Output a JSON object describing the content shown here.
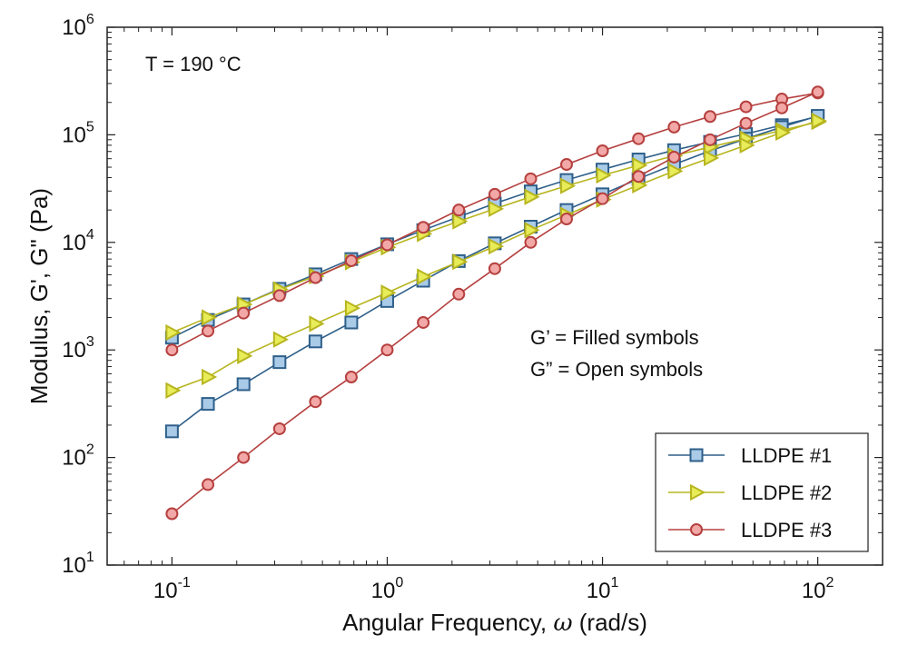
{
  "chart_data": {
    "type": "line",
    "xscale": "log",
    "yscale": "log",
    "xlim": [
      0.05,
      200
    ],
    "ylim": [
      10,
      1000000
    ],
    "xlabel_prefix": "Angular Frequency, ",
    "xlabel_symbol": "ω",
    "xlabel_suffix": " (rad/s)",
    "ylabel": "Modulus, G', G\" (Pa)",
    "x_ticks": [
      {
        "value": 0.1,
        "base": "10",
        "exp": "-1"
      },
      {
        "value": 1,
        "base": "10",
        "exp": "0"
      },
      {
        "value": 10,
        "base": "10",
        "exp": "1"
      },
      {
        "value": 100,
        "base": "10",
        "exp": "2"
      }
    ],
    "y_ticks": [
      {
        "value": 10,
        "base": "10",
        "exp": "1"
      },
      {
        "value": 100,
        "base": "10",
        "exp": "2"
      },
      {
        "value": 1000,
        "base": "10",
        "exp": "3"
      },
      {
        "value": 10000,
        "base": "10",
        "exp": "4"
      },
      {
        "value": 100000,
        "base": "10",
        "exp": "5"
      },
      {
        "value": 1000000,
        "base": "10",
        "exp": "6"
      }
    ],
    "annotations": {
      "temperature": "T = 190 °C",
      "filled_note": "G’ = Filled symbols",
      "open_note": "G” = Open symbols"
    },
    "legend_position": "bottom-right",
    "x": [
      0.1,
      0.147,
      0.215,
      0.316,
      0.464,
      0.681,
      1.0,
      1.47,
      2.15,
      3.16,
      4.64,
      6.81,
      10.0,
      14.7,
      21.5,
      31.6,
      46.4,
      68.1,
      100.0
    ],
    "series": [
      {
        "name": "LLDPE #1",
        "marker": "square",
        "stroke": "#2e5f8a",
        "fill": "#a9cbe8",
        "G_prime": [
          175,
          315,
          480,
          770,
          1200,
          1800,
          2850,
          4400,
          6700,
          9800,
          14000,
          20000,
          28000,
          39000,
          53000,
          71000,
          92000,
          118000,
          150000
        ],
        "G_double_prime": [
          1300,
          1900,
          2650,
          3700,
          5050,
          7000,
          9600,
          13000,
          17300,
          23000,
          29800,
          38000,
          47500,
          59000,
          72000,
          86000,
          102000,
          123000,
          148000
        ]
      },
      {
        "name": "LLDPE #2",
        "marker": "triangle-right",
        "stroke": "#b7b51f",
        "fill": "#e8ec58",
        "G_prime": [
          420,
          560,
          880,
          1250,
          1750,
          2450,
          3400,
          4800,
          6600,
          9200,
          13000,
          18000,
          25000,
          34000,
          46000,
          61000,
          80000,
          105000,
          135000
        ],
        "G_double_prime": [
          1450,
          2000,
          2650,
          3650,
          4850,
          6550,
          9000,
          12000,
          15700,
          20500,
          26500,
          33500,
          42000,
          52000,
          64000,
          77000,
          92000,
          110000,
          132000
        ]
      },
      {
        "name": "LLDPE #3",
        "marker": "circle",
        "stroke": "#b5403f",
        "fill": "#f2a8a6",
        "G_prime": [
          30,
          56,
          100,
          185,
          330,
          560,
          1000,
          1800,
          3300,
          5700,
          10000,
          16500,
          25500,
          41000,
          62000,
          90000,
          128000,
          178000,
          250000
        ],
        "G_double_prime": [
          1000,
          1500,
          2200,
          3200,
          4700,
          6750,
          9500,
          13800,
          20000,
          28000,
          39000,
          53000,
          71000,
          92000,
          118000,
          148000,
          182000,
          215000,
          245000
        ]
      }
    ]
  }
}
